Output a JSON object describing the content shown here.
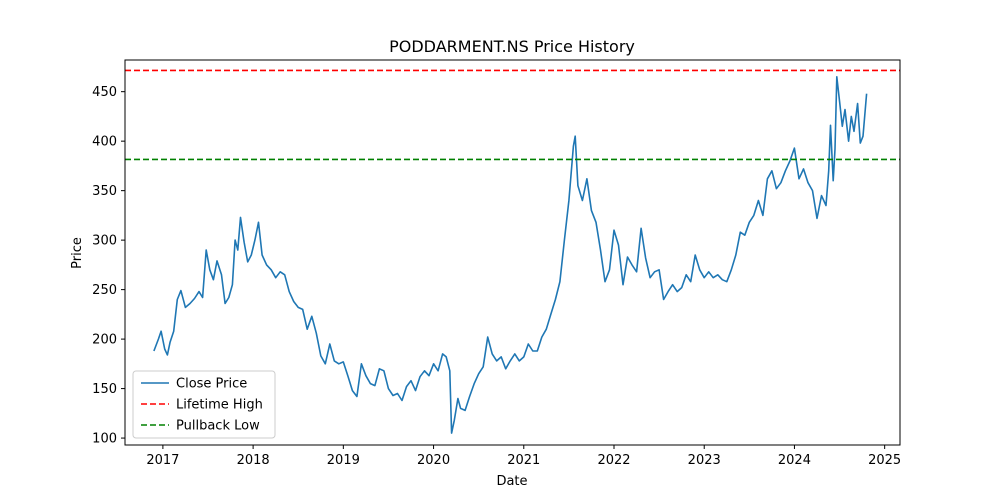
{
  "chart_data": {
    "type": "line",
    "title": "PODDARMENT.NS Price History",
    "xlabel": "Date",
    "ylabel": "Price",
    "xlim": [
      2016.58,
      2025.17
    ],
    "ylim": [
      93,
      482
    ],
    "x_ticks": [
      {
        "value": 2017,
        "label": "2017"
      },
      {
        "value": 2018,
        "label": "2018"
      },
      {
        "value": 2019,
        "label": "2019"
      },
      {
        "value": 2020,
        "label": "2020"
      },
      {
        "value": 2021,
        "label": "2021"
      },
      {
        "value": 2022,
        "label": "2022"
      },
      {
        "value": 2023,
        "label": "2023"
      },
      {
        "value": 2024,
        "label": "2024"
      },
      {
        "value": 2025,
        "label": "2025"
      }
    ],
    "y_ticks": [
      {
        "value": 100,
        "label": "100"
      },
      {
        "value": 150,
        "label": "150"
      },
      {
        "value": 200,
        "label": "200"
      },
      {
        "value": 250,
        "label": "250"
      },
      {
        "value": 300,
        "label": "300"
      },
      {
        "value": 350,
        "label": "350"
      },
      {
        "value": 400,
        "label": "400"
      },
      {
        "value": 450,
        "label": "450"
      }
    ],
    "legend_position": "lower-left",
    "grid": false,
    "series": [
      {
        "name": "Close Price",
        "color": "#1f77b4",
        "style": "solid",
        "points": [
          [
            2016.9,
            188
          ],
          [
            2016.95,
            200
          ],
          [
            2016.98,
            208
          ],
          [
            2017.02,
            190
          ],
          [
            2017.05,
            184
          ],
          [
            2017.08,
            197
          ],
          [
            2017.12,
            208
          ],
          [
            2017.16,
            240
          ],
          [
            2017.2,
            249
          ],
          [
            2017.25,
            232
          ],
          [
            2017.3,
            236
          ],
          [
            2017.35,
            241
          ],
          [
            2017.4,
            248
          ],
          [
            2017.44,
            242
          ],
          [
            2017.48,
            290
          ],
          [
            2017.52,
            270
          ],
          [
            2017.56,
            260
          ],
          [
            2017.6,
            279
          ],
          [
            2017.65,
            265
          ],
          [
            2017.69,
            236
          ],
          [
            2017.73,
            242
          ],
          [
            2017.77,
            255
          ],
          [
            2017.8,
            300
          ],
          [
            2017.83,
            290
          ],
          [
            2017.86,
            323
          ],
          [
            2017.9,
            298
          ],
          [
            2017.94,
            278
          ],
          [
            2017.98,
            285
          ],
          [
            2018.02,
            300
          ],
          [
            2018.06,
            318
          ],
          [
            2018.1,
            285
          ],
          [
            2018.15,
            275
          ],
          [
            2018.2,
            270
          ],
          [
            2018.25,
            262
          ],
          [
            2018.3,
            268
          ],
          [
            2018.35,
            265
          ],
          [
            2018.4,
            248
          ],
          [
            2018.45,
            238
          ],
          [
            2018.5,
            232
          ],
          [
            2018.55,
            230
          ],
          [
            2018.6,
            210
          ],
          [
            2018.65,
            223
          ],
          [
            2018.7,
            206
          ],
          [
            2018.75,
            183
          ],
          [
            2018.8,
            175
          ],
          [
            2018.85,
            195
          ],
          [
            2018.9,
            178
          ],
          [
            2018.95,
            175
          ],
          [
            2019.0,
            177
          ],
          [
            2019.05,
            163
          ],
          [
            2019.1,
            148
          ],
          [
            2019.15,
            142
          ],
          [
            2019.2,
            175
          ],
          [
            2019.25,
            163
          ],
          [
            2019.3,
            155
          ],
          [
            2019.35,
            153
          ],
          [
            2019.4,
            170
          ],
          [
            2019.45,
            168
          ],
          [
            2019.5,
            150
          ],
          [
            2019.55,
            143
          ],
          [
            2019.6,
            145
          ],
          [
            2019.65,
            138
          ],
          [
            2019.7,
            152
          ],
          [
            2019.75,
            158
          ],
          [
            2019.8,
            148
          ],
          [
            2019.85,
            162
          ],
          [
            2019.9,
            168
          ],
          [
            2019.95,
            163
          ],
          [
            2020.0,
            175
          ],
          [
            2020.05,
            168
          ],
          [
            2020.1,
            185
          ],
          [
            2020.14,
            182
          ],
          [
            2020.18,
            168
          ],
          [
            2020.2,
            105
          ],
          [
            2020.23,
            118
          ],
          [
            2020.27,
            140
          ],
          [
            2020.3,
            130
          ],
          [
            2020.35,
            128
          ],
          [
            2020.4,
            142
          ],
          [
            2020.45,
            155
          ],
          [
            2020.5,
            165
          ],
          [
            2020.55,
            172
          ],
          [
            2020.6,
            202
          ],
          [
            2020.65,
            185
          ],
          [
            2020.7,
            178
          ],
          [
            2020.75,
            182
          ],
          [
            2020.8,
            170
          ],
          [
            2020.85,
            178
          ],
          [
            2020.9,
            185
          ],
          [
            2020.95,
            178
          ],
          [
            2021.0,
            182
          ],
          [
            2021.05,
            195
          ],
          [
            2021.1,
            188
          ],
          [
            2021.15,
            188
          ],
          [
            2021.2,
            202
          ],
          [
            2021.25,
            210
          ],
          [
            2021.3,
            225
          ],
          [
            2021.35,
            240
          ],
          [
            2021.4,
            258
          ],
          [
            2021.45,
            300
          ],
          [
            2021.5,
            340
          ],
          [
            2021.55,
            395
          ],
          [
            2021.57,
            405
          ],
          [
            2021.6,
            355
          ],
          [
            2021.65,
            340
          ],
          [
            2021.7,
            362
          ],
          [
            2021.75,
            330
          ],
          [
            2021.8,
            318
          ],
          [
            2021.85,
            290
          ],
          [
            2021.9,
            258
          ],
          [
            2021.95,
            270
          ],
          [
            2022.0,
            310
          ],
          [
            2022.05,
            295
          ],
          [
            2022.1,
            255
          ],
          [
            2022.15,
            283
          ],
          [
            2022.2,
            275
          ],
          [
            2022.25,
            268
          ],
          [
            2022.3,
            312
          ],
          [
            2022.35,
            282
          ],
          [
            2022.4,
            262
          ],
          [
            2022.45,
            268
          ],
          [
            2022.5,
            270
          ],
          [
            2022.55,
            240
          ],
          [
            2022.6,
            248
          ],
          [
            2022.65,
            255
          ],
          [
            2022.7,
            248
          ],
          [
            2022.75,
            252
          ],
          [
            2022.8,
            265
          ],
          [
            2022.85,
            258
          ],
          [
            2022.9,
            285
          ],
          [
            2022.95,
            270
          ],
          [
            2023.0,
            262
          ],
          [
            2023.05,
            268
          ],
          [
            2023.1,
            262
          ],
          [
            2023.15,
            265
          ],
          [
            2023.2,
            260
          ],
          [
            2023.25,
            258
          ],
          [
            2023.3,
            270
          ],
          [
            2023.35,
            285
          ],
          [
            2023.4,
            308
          ],
          [
            2023.45,
            305
          ],
          [
            2023.5,
            318
          ],
          [
            2023.55,
            325
          ],
          [
            2023.6,
            340
          ],
          [
            2023.65,
            325
          ],
          [
            2023.7,
            362
          ],
          [
            2023.75,
            370
          ],
          [
            2023.8,
            352
          ],
          [
            2023.85,
            358
          ],
          [
            2023.9,
            370
          ],
          [
            2023.95,
            380
          ],
          [
            2024.0,
            393
          ],
          [
            2024.05,
            362
          ],
          [
            2024.1,
            372
          ],
          [
            2024.15,
            358
          ],
          [
            2024.2,
            350
          ],
          [
            2024.25,
            322
          ],
          [
            2024.3,
            345
          ],
          [
            2024.35,
            335
          ],
          [
            2024.38,
            370
          ],
          [
            2024.4,
            416
          ],
          [
            2024.43,
            360
          ],
          [
            2024.45,
            392
          ],
          [
            2024.47,
            465
          ],
          [
            2024.5,
            440
          ],
          [
            2024.53,
            415
          ],
          [
            2024.56,
            432
          ],
          [
            2024.6,
            400
          ],
          [
            2024.63,
            425
          ],
          [
            2024.66,
            410
          ],
          [
            2024.7,
            438
          ],
          [
            2024.73,
            398
          ],
          [
            2024.76,
            405
          ],
          [
            2024.8,
            448
          ]
        ]
      },
      {
        "name": "Lifetime High",
        "color": "#ff0000",
        "style": "dashed",
        "hline": 471.5
      },
      {
        "name": "Pullback Low",
        "color": "#008000",
        "style": "dashed",
        "hline": 381.5
      }
    ]
  }
}
